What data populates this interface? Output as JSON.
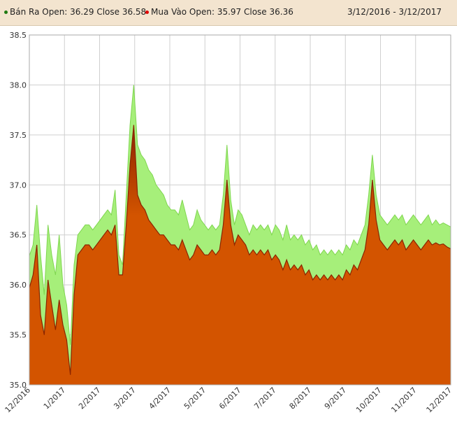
{
  "header": {
    "date_range": "3/12/2016 - 3/12/2017"
  },
  "colors": {
    "ban_ra": "#a6ef7a",
    "mua_vao": "#d35400",
    "mua_vao_dark": "#8b2500",
    "ban_ra_dot": "#1f7a12",
    "mua_vao_dot": "#e00000",
    "grid": "#cfcfcf"
  },
  "chart_data": {
    "type": "area",
    "ylim": [
      35.0,
      38.5
    ],
    "y_ticks": [
      "35.0",
      "35.5",
      "36.0",
      "36.5",
      "37.0",
      "37.5",
      "38.0",
      "38.5"
    ],
    "x_tick_labels": [
      "12/2016",
      "1/2017",
      "2/2017",
      "3/2017",
      "4/2017",
      "5/2017",
      "6/2017",
      "7/2017",
      "8/2017",
      "9/2017",
      "10/2017",
      "11/2017",
      "12/2017"
    ],
    "grid": true,
    "legend_position": "top",
    "series": [
      {
        "name": "Bán Ra",
        "legend_label": "Bán Ra Open: 36.29 Close 36.58",
        "color_key": "ban_ra",
        "values": [
          36.29,
          36.4,
          36.8,
          36.3,
          35.9,
          36.6,
          36.3,
          36.1,
          36.5,
          36.0,
          35.8,
          35.4,
          36.2,
          36.5,
          36.55,
          36.6,
          36.6,
          36.55,
          36.6,
          36.65,
          36.7,
          36.75,
          36.7,
          36.95,
          36.3,
          36.2,
          36.9,
          37.6,
          38.0,
          37.4,
          37.3,
          37.25,
          37.15,
          37.1,
          37.0,
          36.95,
          36.9,
          36.8,
          36.75,
          36.75,
          36.7,
          36.85,
          36.7,
          36.55,
          36.6,
          36.75,
          36.65,
          36.6,
          36.55,
          36.6,
          36.55,
          36.6,
          36.9,
          37.4,
          36.85,
          36.6,
          36.75,
          36.7,
          36.6,
          36.5,
          36.6,
          36.55,
          36.6,
          36.55,
          36.6,
          36.5,
          36.6,
          36.55,
          36.45,
          36.6,
          36.45,
          36.5,
          36.45,
          36.5,
          36.4,
          36.45,
          36.35,
          36.4,
          36.3,
          36.35,
          36.3,
          36.35,
          36.3,
          36.35,
          36.3,
          36.4,
          36.35,
          36.45,
          36.4,
          36.5,
          36.6,
          36.9,
          37.3,
          36.9,
          36.7,
          36.65,
          36.6,
          36.65,
          36.7,
          36.65,
          36.7,
          36.6,
          36.65,
          36.7,
          36.65,
          36.6,
          36.65,
          36.7,
          36.6,
          36.65,
          36.6,
          36.62,
          36.6,
          36.58
        ]
      },
      {
        "name": "Mua Vào",
        "legend_label": "Mua Vào Open: 35.97 Close 36.36",
        "color_key": "mua_vao",
        "values": [
          35.97,
          36.1,
          36.4,
          35.7,
          35.5,
          36.05,
          35.8,
          35.55,
          35.85,
          35.6,
          35.45,
          35.1,
          35.9,
          36.3,
          36.35,
          36.4,
          36.4,
          36.35,
          36.4,
          36.45,
          36.5,
          36.55,
          36.5,
          36.6,
          36.1,
          36.1,
          36.6,
          37.2,
          37.6,
          36.9,
          36.8,
          36.75,
          36.65,
          36.6,
          36.55,
          36.5,
          36.5,
          36.45,
          36.4,
          36.4,
          36.35,
          36.45,
          36.35,
          36.25,
          36.3,
          36.4,
          36.35,
          36.3,
          36.3,
          36.35,
          36.3,
          36.35,
          36.6,
          37.05,
          36.6,
          36.4,
          36.5,
          36.45,
          36.4,
          36.3,
          36.35,
          36.3,
          36.35,
          36.3,
          36.35,
          36.25,
          36.3,
          36.25,
          36.15,
          36.25,
          36.15,
          36.2,
          36.15,
          36.2,
          36.1,
          36.15,
          36.05,
          36.1,
          36.05,
          36.1,
          36.05,
          36.1,
          36.05,
          36.1,
          36.05,
          36.15,
          36.1,
          36.2,
          36.15,
          36.25,
          36.35,
          36.6,
          37.05,
          36.65,
          36.45,
          36.4,
          36.35,
          36.4,
          36.45,
          36.4,
          36.45,
          36.35,
          36.4,
          36.45,
          36.4,
          36.35,
          36.4,
          36.45,
          36.4,
          36.42,
          36.4,
          36.41,
          36.38,
          36.36
        ]
      }
    ]
  }
}
